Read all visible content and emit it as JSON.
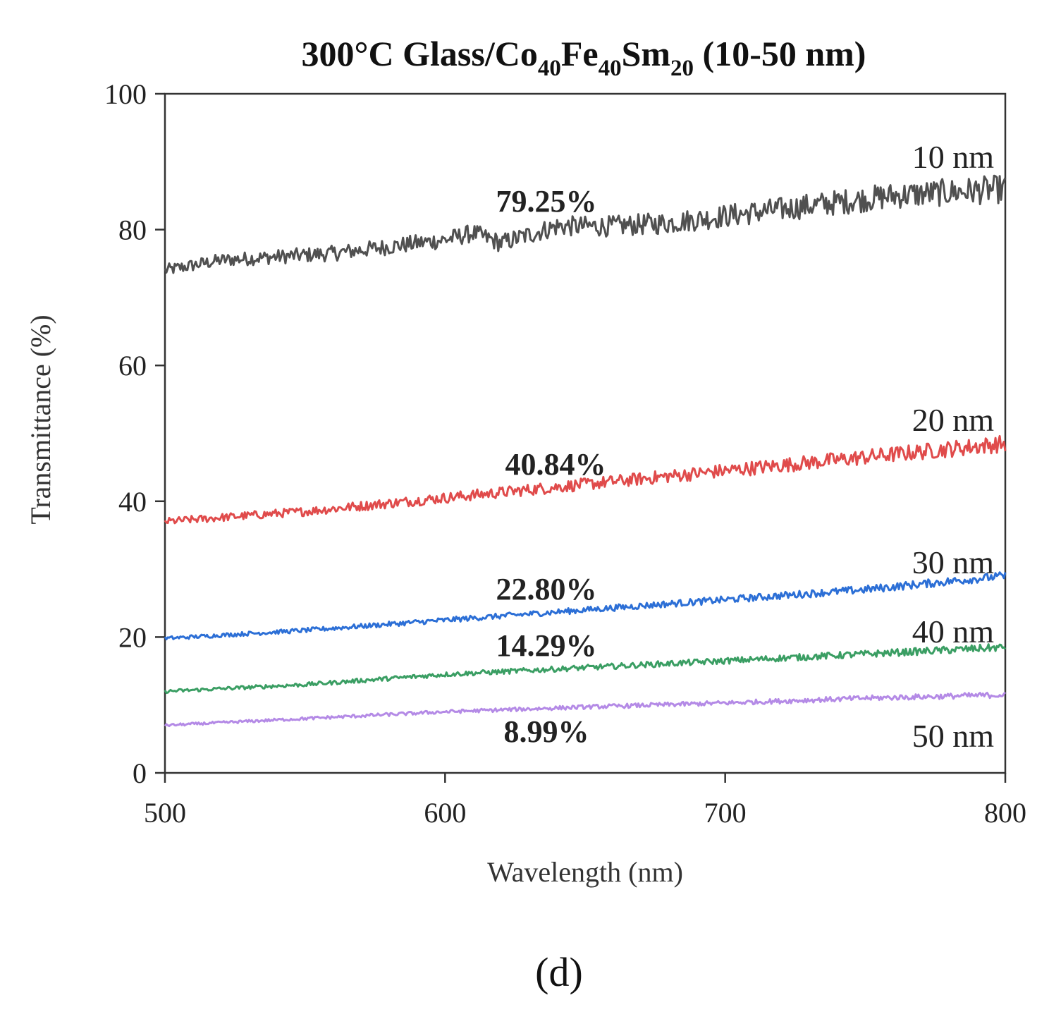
{
  "chart_data": {
    "type": "line",
    "title": {
      "prefix": "300°C Glass/Co",
      "sub1": "40",
      "mid1": "Fe",
      "sub2": "40",
      "mid2": "Sm",
      "sub3": "20",
      "suffix": " (10-50 nm)"
    },
    "xlabel": "Wavelength (nm)",
    "ylabel": "Transmittance (%)",
    "xlim": [
      500,
      800
    ],
    "ylim": [
      0,
      100
    ],
    "xticks": [
      500,
      600,
      700,
      800
    ],
    "yticks": [
      0,
      20,
      40,
      60,
      80,
      100
    ],
    "grid": false,
    "caption": "(d)",
    "series": [
      {
        "name": "10 nm",
        "average_label": "79.25%",
        "color": "#505050",
        "x": [
          500,
          520,
          540,
          560,
          580,
          600,
          610,
          620,
          640,
          660,
          680,
          700,
          720,
          740,
          760,
          780,
          800
        ],
        "values": [
          74,
          75.5,
          76,
          76.5,
          77.5,
          78.5,
          79.5,
          78,
          80.5,
          80.5,
          81,
          82,
          83,
          84,
          85,
          85.5,
          86
        ],
        "noise": 1.5
      },
      {
        "name": "20 nm",
        "average_label": "40.84%",
        "color": "#e04b4b",
        "x": [
          500,
          550,
          600,
          650,
          700,
          750,
          800
        ],
        "values": [
          37,
          38.5,
          40.5,
          42.5,
          44.5,
          46.5,
          48.5
        ],
        "noise": 0.9
      },
      {
        "name": "30 nm",
        "average_label": "22.80%",
        "color": "#2c6fd6",
        "x": [
          500,
          550,
          600,
          650,
          700,
          750,
          800
        ],
        "values": [
          19.8,
          21,
          22.5,
          24,
          25.5,
          27,
          29
        ],
        "noise": 0.45
      },
      {
        "name": "40 nm",
        "average_label": "14.29%",
        "color": "#3a9e63",
        "x": [
          500,
          550,
          600,
          650,
          700,
          750,
          800
        ],
        "values": [
          12,
          13,
          14.5,
          15.5,
          16.5,
          17.5,
          18.5
        ],
        "noise": 0.4
      },
      {
        "name": "50 nm",
        "average_label": "8.99%",
        "color": "#b48ae6",
        "x": [
          500,
          550,
          600,
          650,
          700,
          750,
          800
        ],
        "values": [
          7,
          8,
          9,
          9.7,
          10.3,
          11,
          11.5
        ],
        "noise": 0.3
      }
    ]
  }
}
